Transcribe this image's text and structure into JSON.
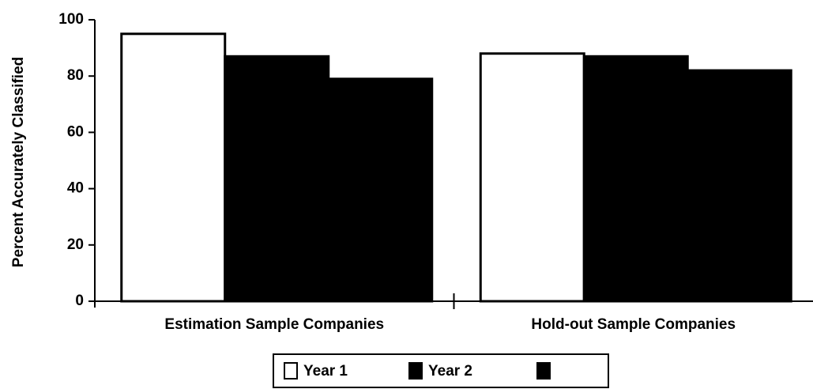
{
  "chart_data": {
    "type": "bar",
    "y_label": "Percent Accurately Classified",
    "categories": [
      "Estimation Sample Companies",
      "Hold-out Sample Companies"
    ],
    "series": [
      {
        "name": "Year 1",
        "color": "#ffffff",
        "values": [
          95,
          88
        ]
      },
      {
        "name": "Year 2",
        "color": "#000000",
        "values": [
          87,
          87
        ]
      },
      {
        "color": "#000000",
        "values": [
          79,
          82
        ]
      }
    ],
    "ylim": [
      0,
      100
    ],
    "yticks": [
      0,
      20,
      40,
      60,
      80,
      100
    ]
  }
}
